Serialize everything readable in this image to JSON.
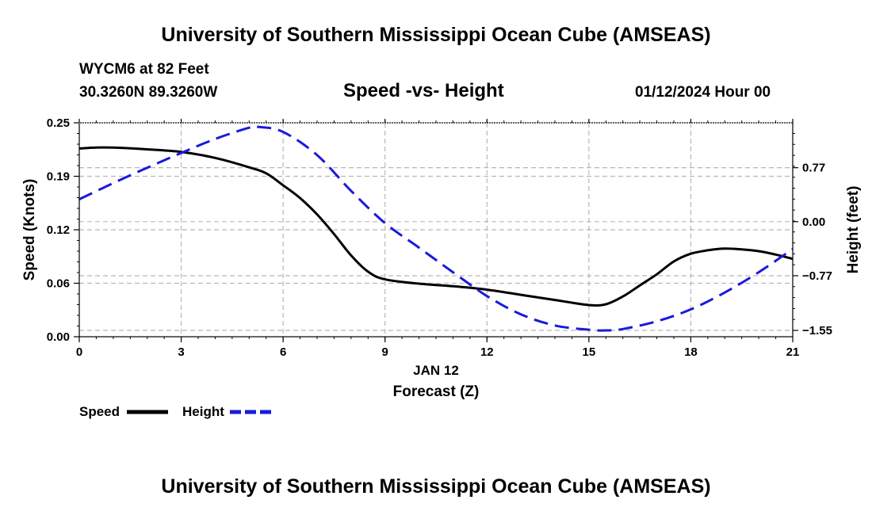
{
  "header": {
    "title": "University of Southern Mississippi Ocean Cube (AMSEAS)",
    "station": "WYCM6 at 82 Feet",
    "coords": "30.3260N  89.3260W",
    "subtitle": "Speed -vs- Height",
    "datetime": "01/12/2024 Hour 00"
  },
  "footer": {
    "title": "University of Southern Mississippi Ocean Cube (AMSEAS)"
  },
  "chart_data": {
    "type": "line",
    "title": "Speed -vs- Height",
    "xlabel": "Forecast (Z)",
    "xlabel_date": "JAN 12",
    "ylabel": "Speed (Knots)",
    "y2label": "Height (feet)",
    "xlim": [
      0,
      21
    ],
    "ylim": [
      0,
      0.25
    ],
    "y2lim": [
      -1.64,
      1.41
    ],
    "grid": true,
    "x_ticks": [
      0,
      3,
      6,
      9,
      12,
      15,
      18,
      21
    ],
    "x_tick_labels": [
      "0",
      "3",
      "6",
      "9",
      "12",
      "15",
      "18",
      "21"
    ],
    "y_ticks": [
      0.0,
      0.0625,
      0.125,
      0.1875,
      0.25
    ],
    "y_tick_labels": [
      "0.00",
      "0.06",
      "0.12",
      "0.19",
      "0.25"
    ],
    "y2_ticks": [
      -1.55,
      -0.77,
      0.0,
      0.77
    ],
    "y2_tick_labels": [
      "-1.55",
      "-0.77",
      "0.00",
      "0.77"
    ],
    "series": [
      {
        "name": "Speed",
        "axis": "left",
        "color": "#000000",
        "dash": "solid",
        "x": [
          0,
          0.5,
          1,
          2,
          3,
          4,
          5,
          5.5,
          6,
          6.5,
          7,
          7.5,
          8,
          8.5,
          9,
          10,
          11,
          12,
          13,
          14,
          15,
          15.5,
          16,
          16.5,
          17,
          17.5,
          18,
          18.5,
          19,
          19.5,
          20,
          20.5,
          21
        ],
        "values": [
          0.22,
          0.221,
          0.221,
          0.219,
          0.216,
          0.209,
          0.198,
          0.191,
          0.177,
          0.162,
          0.143,
          0.12,
          0.095,
          0.076,
          0.067,
          0.062,
          0.059,
          0.055,
          0.049,
          0.043,
          0.037,
          0.038,
          0.047,
          0.06,
          0.073,
          0.088,
          0.097,
          0.101,
          0.103,
          0.102,
          0.1,
          0.096,
          0.091
        ]
      },
      {
        "name": "Height",
        "axis": "right",
        "color": "#1a1adb",
        "dash": "dashed",
        "x": [
          0,
          1,
          2,
          3,
          4,
          5,
          5.3,
          6,
          7,
          8,
          9,
          10,
          11,
          12,
          13,
          14,
          15,
          15.5,
          16,
          17,
          18,
          19,
          20,
          21
        ],
        "values": [
          0.32,
          0.55,
          0.77,
          0.98,
          1.18,
          1.34,
          1.35,
          1.28,
          0.95,
          0.44,
          -0.02,
          -0.37,
          -0.72,
          -1.06,
          -1.32,
          -1.48,
          -1.54,
          -1.55,
          -1.53,
          -1.42,
          -1.25,
          -1.01,
          -0.72,
          -0.39
        ]
      }
    ],
    "legend": {
      "placement": "bottom-left",
      "entries": [
        {
          "label": "Speed",
          "color": "#000000",
          "dash": "solid"
        },
        {
          "label": "Height",
          "color": "#1a1adb",
          "dash": "dashed"
        }
      ]
    }
  }
}
